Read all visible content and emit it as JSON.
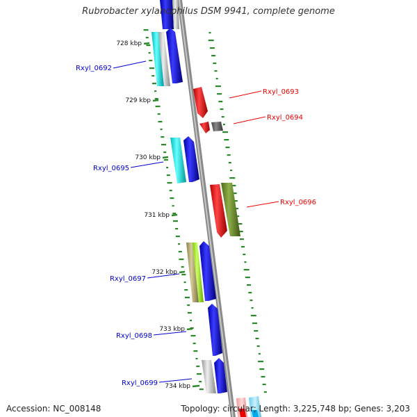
{
  "header": {
    "title": "Rubrobacter xylanophilus DSM 9941, complete genome"
  },
  "footer": {
    "accession": "Accession: NC_008148",
    "summary": "Topology: circular; Length: 3,225,748 bp; Genes: 3,203"
  },
  "ticks": [
    {
      "label": "728 kbp"
    },
    {
      "label": "729 kbp"
    },
    {
      "label": "730 kbp"
    },
    {
      "label": "731 kbp"
    },
    {
      "label": "732 kbp"
    },
    {
      "label": "733 kbp"
    },
    {
      "label": "734 kbp"
    }
  ],
  "genes": [
    {
      "label": "Rxyl_0692",
      "strand": "forward",
      "color": "#0000cc"
    },
    {
      "label": "Rxyl_0693",
      "strand": "reverse",
      "color": "#ee0000"
    },
    {
      "label": "Rxyl_0694",
      "strand": "reverse",
      "color": "#ee0000"
    },
    {
      "label": "Rxyl_0695",
      "strand": "forward",
      "color": "#0000cc"
    },
    {
      "label": "Rxyl_0696",
      "strand": "reverse",
      "color": "#ee0000"
    },
    {
      "label": "Rxyl_0697",
      "strand": "forward",
      "color": "#0000cc"
    },
    {
      "label": "Rxyl_0698",
      "strand": "forward",
      "color": "#0000cc"
    },
    {
      "label": "Rxyl_0699",
      "strand": "forward",
      "color": "#0000cc"
    }
  ],
  "colors": {
    "backbone": "#888888",
    "gc_skew": "#2a8a2a",
    "forward_label": "#0000cc",
    "reverse_label": "#ee0000"
  }
}
